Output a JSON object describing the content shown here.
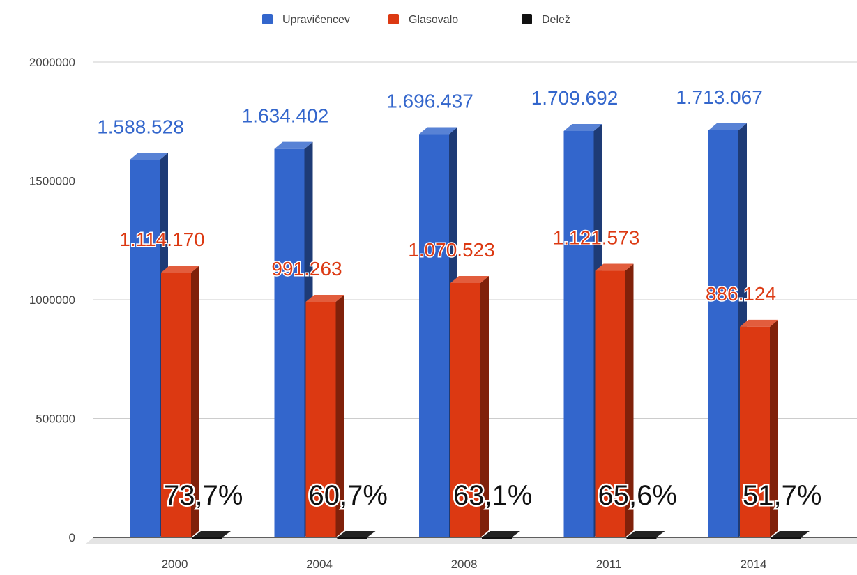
{
  "chart_data": {
    "type": "bar",
    "categories": [
      "2000",
      "2004",
      "2008",
      "2011",
      "2014"
    ],
    "series": [
      {
        "name": "Upravičencev",
        "color": "#3366cc",
        "values": [
          1588528,
          1634402,
          1696437,
          1709692,
          1713067
        ],
        "labels": [
          "1.588.528",
          "1.634.402",
          "1.696.437",
          "1.709.692",
          "1.713.067"
        ]
      },
      {
        "name": "Glasovalo",
        "color": "#dc3912",
        "values": [
          1114170,
          991263,
          1070523,
          1121573,
          886124
        ],
        "labels": [
          "1.114.170",
          "991.263",
          "1.070.523",
          "1.121.573",
          "886.124"
        ]
      },
      {
        "name": "Delež",
        "color": "#111111",
        "values": [
          73.7,
          60.7,
          63.1,
          65.6,
          51.7
        ],
        "labels": [
          "73,7%",
          "60,7%",
          "63,1%",
          "65,6%",
          "51,7%"
        ]
      }
    ],
    "yticks": [
      "0",
      "500000",
      "1000000",
      "1500000",
      "2000000"
    ],
    "ylim": [
      0,
      2000000
    ],
    "grid": true,
    "legend": "top",
    "style": "3d-column"
  }
}
